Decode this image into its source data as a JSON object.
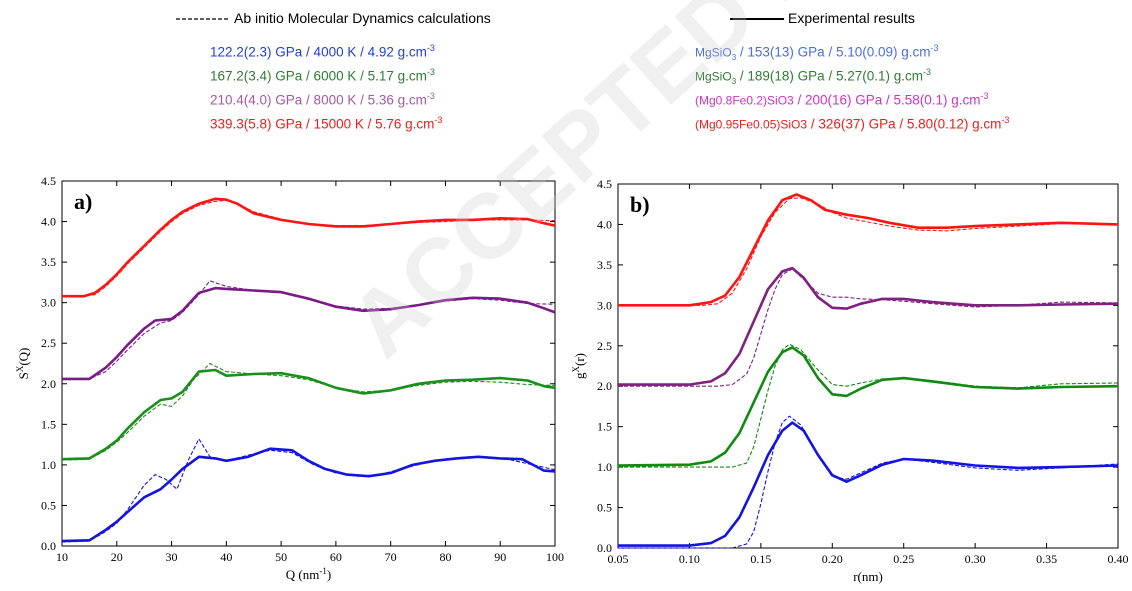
{
  "legend": {
    "sim_title": "Ab initio Molecular Dynamics calculations",
    "exp_title": "Experimental results",
    "sim_entries": [
      {
        "text": "122.2(2.3) GPa / 4000 K / 4.92 g.cm",
        "sup": "-3",
        "color": "#1f3fd8"
      },
      {
        "text": "167.2(3.4) GPa / 6000 K / 5.17 g.cm",
        "sup": "-3",
        "color": "#2e7d32"
      },
      {
        "text": "210.4(4.0) GPa / 8000 K / 5.36 g.cm",
        "sup": "-3",
        "color": "#a35aa3"
      },
      {
        "text": "339.3(5.8) GPa / 15000 K / 5.76 g.cm",
        "sup": "-3",
        "color": "#ef1c1c"
      }
    ],
    "exp_entries": [
      {
        "pre": "MgSiO",
        "pre_sub": "3",
        "text": " / 153(13) GPa / 5.10(0.09) g.cm",
        "sup": "-3",
        "color": "#4a6ee0"
      },
      {
        "pre": "MgSiO",
        "pre_sub": "3",
        "text": " / 189(18) GPa / 5.27(0.1) g.cm",
        "sup": "-3",
        "color": "#2e7d32"
      },
      {
        "pre": "(Mg0.8Fe0.2)SiO3",
        "text": " / 200(16) GPa / 5.58(0.1) g.cm",
        "sup": "-3",
        "color": "#d230c8"
      },
      {
        "pre": "(Mg0.95Fe0.05)SiO3",
        "text": " / 326(37) GPa / 5.80(0.12) g.cm",
        "sup": "-3",
        "color": "#ef1c1c"
      }
    ]
  },
  "watermark": "ACCEPTED PROOF",
  "chart_data": [
    {
      "type": "line",
      "panel_label": "a)",
      "xlabel": "Q (nm",
      "xlabel_sup": "-1",
      "xlabel_tail": ")",
      "ylabel": "S",
      "ylabel_sup": "X",
      "ylabel_tail": "(Q)",
      "xlim": [
        10,
        100
      ],
      "ylim": [
        0.0,
        4.5
      ],
      "xticks": [
        "10",
        "20",
        "30",
        "40",
        "50",
        "60",
        "70",
        "80",
        "90",
        "100"
      ],
      "yticks": [
        "0.0",
        "0.5",
        "1.0",
        "1.5",
        "2.0",
        "2.5",
        "3.0",
        "3.5",
        "4.0",
        "4.5"
      ],
      "series": [
        {
          "color": "#1414e0",
          "style": "solid",
          "x": [
            10,
            15,
            18,
            20,
            22,
            25,
            28,
            30,
            32,
            35,
            38,
            40,
            44,
            48,
            52,
            55,
            58,
            62,
            66,
            70,
            74,
            78,
            82,
            86,
            90,
            94,
            96,
            98,
            100
          ],
          "y": [
            0.06,
            0.07,
            0.2,
            0.3,
            0.42,
            0.6,
            0.7,
            0.82,
            0.95,
            1.1,
            1.08,
            1.05,
            1.1,
            1.2,
            1.18,
            1.05,
            0.95,
            0.88,
            0.86,
            0.9,
            1.0,
            1.05,
            1.08,
            1.1,
            1.08,
            1.07,
            1.0,
            0.93,
            0.92
          ]
        },
        {
          "color": "#1414e0",
          "style": "dashed",
          "x": [
            10,
            15,
            18,
            20,
            22,
            25,
            27,
            29,
            31,
            33,
            35,
            37,
            40,
            44,
            48,
            52,
            56,
            60,
            64,
            68,
            72,
            76,
            80,
            84,
            88,
            92,
            96,
            100
          ],
          "y": [
            0.05,
            0.06,
            0.18,
            0.28,
            0.45,
            0.75,
            0.88,
            0.82,
            0.7,
            1.05,
            1.32,
            1.1,
            1.05,
            1.12,
            1.18,
            1.15,
            1.0,
            0.9,
            0.86,
            0.88,
            0.95,
            1.02,
            1.07,
            1.1,
            1.09,
            1.06,
            1.0,
            0.94
          ]
        },
        {
          "color": "#1b8f1b",
          "style": "solid",
          "x": [
            10,
            15,
            18,
            20,
            22,
            25,
            28,
            30,
            32,
            35,
            38,
            40,
            45,
            50,
            55,
            60,
            65,
            70,
            75,
            80,
            85,
            90,
            95,
            98,
            100
          ],
          "y": [
            1.07,
            1.08,
            1.2,
            1.3,
            1.45,
            1.65,
            1.8,
            1.82,
            1.9,
            2.15,
            2.17,
            2.1,
            2.12,
            2.13,
            2.07,
            1.95,
            1.88,
            1.92,
            2.0,
            2.04,
            2.05,
            2.07,
            2.04,
            1.97,
            1.95
          ]
        },
        {
          "color": "#1b8f1b",
          "style": "dashed",
          "x": [
            10,
            15,
            18,
            20,
            22,
            25,
            28,
            30,
            32,
            34,
            37,
            40,
            45,
            50,
            55,
            60,
            65,
            70,
            75,
            80,
            85,
            90,
            95,
            100
          ],
          "y": [
            1.06,
            1.07,
            1.18,
            1.28,
            1.4,
            1.6,
            1.75,
            1.72,
            1.85,
            2.05,
            2.25,
            2.15,
            2.12,
            2.1,
            2.05,
            1.95,
            1.9,
            1.92,
            1.98,
            2.02,
            2.03,
            2.02,
            1.99,
            1.98
          ]
        },
        {
          "color": "#7b1b87",
          "style": "solid",
          "x": [
            10,
            15,
            18,
            20,
            22,
            25,
            27,
            30,
            32,
            35,
            38,
            40,
            45,
            50,
            55,
            60,
            65,
            70,
            75,
            80,
            85,
            90,
            95,
            98,
            100
          ],
          "y": [
            2.06,
            2.06,
            2.2,
            2.33,
            2.48,
            2.68,
            2.78,
            2.8,
            2.9,
            3.12,
            3.18,
            3.17,
            3.15,
            3.13,
            3.05,
            2.95,
            2.9,
            2.92,
            2.97,
            3.03,
            3.06,
            3.05,
            3.0,
            2.93,
            2.88
          ]
        },
        {
          "color": "#7b1b87",
          "style": "dashed",
          "x": [
            10,
            15,
            18,
            20,
            22,
            25,
            28,
            30,
            32,
            35,
            37,
            40,
            45,
            50,
            55,
            60,
            65,
            70,
            75,
            80,
            85,
            90,
            95,
            100
          ],
          "y": [
            2.05,
            2.06,
            2.15,
            2.28,
            2.42,
            2.62,
            2.75,
            2.78,
            2.88,
            3.1,
            3.27,
            3.2,
            3.15,
            3.12,
            3.04,
            2.96,
            2.92,
            2.93,
            2.97,
            3.02,
            3.05,
            3.03,
            2.99,
            2.98
          ]
        },
        {
          "color": "#ff1414",
          "style": "solid",
          "x": [
            10,
            14,
            16,
            18,
            20,
            22,
            25,
            28,
            30,
            32,
            35,
            38,
            40,
            42,
            45,
            50,
            55,
            60,
            65,
            70,
            75,
            80,
            85,
            90,
            95,
            98,
            100
          ],
          "y": [
            3.08,
            3.08,
            3.12,
            3.22,
            3.35,
            3.5,
            3.7,
            3.9,
            4.02,
            4.12,
            4.22,
            4.28,
            4.27,
            4.22,
            4.1,
            4.02,
            3.97,
            3.94,
            3.94,
            3.97,
            4.0,
            4.02,
            4.02,
            4.04,
            4.03,
            3.98,
            3.95
          ]
        },
        {
          "color": "#ff1414",
          "style": "dashed",
          "x": [
            10,
            14,
            16,
            18,
            20,
            22,
            25,
            28,
            30,
            32,
            35,
            38,
            40,
            42,
            45,
            50,
            55,
            60,
            65,
            70,
            75,
            80,
            85,
            90,
            95,
            100
          ],
          "y": [
            3.07,
            3.08,
            3.1,
            3.2,
            3.33,
            3.48,
            3.68,
            3.88,
            4.0,
            4.1,
            4.2,
            4.25,
            4.26,
            4.22,
            4.12,
            4.03,
            3.97,
            3.95,
            3.95,
            3.97,
            3.99,
            4.0,
            4.02,
            4.02,
            4.02,
            4.01
          ]
        }
      ]
    },
    {
      "type": "line",
      "panel_label": "b)",
      "xlabel": "r(nm)",
      "ylabel": "g",
      "ylabel_sup": "X",
      "ylabel_tail": "(r)",
      "xlim": [
        0.05,
        0.4
      ],
      "ylim": [
        0.0,
        4.5
      ],
      "xticks": [
        "0.05",
        "0.10",
        "0.15",
        "0.20",
        "0.25",
        "0.30",
        "0.35",
        "0.40"
      ],
      "yticks": [
        "0.0",
        "0.5",
        "1.0",
        "1.5",
        "2.0",
        "2.5",
        "3.0",
        "3.5",
        "4.0",
        "4.5"
      ],
      "series": [
        {
          "color": "#1414e0",
          "style": "solid",
          "x": [
            0.05,
            0.1,
            0.115,
            0.125,
            0.135,
            0.145,
            0.155,
            0.165,
            0.172,
            0.18,
            0.19,
            0.2,
            0.21,
            0.22,
            0.235,
            0.25,
            0.27,
            0.3,
            0.33,
            0.36,
            0.4
          ],
          "y": [
            0.03,
            0.03,
            0.06,
            0.15,
            0.38,
            0.75,
            1.15,
            1.45,
            1.55,
            1.45,
            1.15,
            0.9,
            0.82,
            0.9,
            1.03,
            1.1,
            1.08,
            1.02,
            0.99,
            1.0,
            1.02
          ]
        },
        {
          "color": "#1414e0",
          "style": "dashed",
          "x": [
            0.05,
            0.13,
            0.14,
            0.145,
            0.15,
            0.155,
            0.16,
            0.165,
            0.17,
            0.178,
            0.19,
            0.2,
            0.21,
            0.22,
            0.235,
            0.25,
            0.27,
            0.3,
            0.33,
            0.36,
            0.4
          ],
          "y": [
            0.0,
            0.0,
            0.05,
            0.2,
            0.55,
            0.95,
            1.3,
            1.55,
            1.63,
            1.52,
            1.15,
            0.88,
            0.85,
            0.93,
            1.05,
            1.1,
            1.06,
            0.99,
            0.96,
            0.99,
            1.04
          ]
        },
        {
          "color": "#108a10",
          "style": "solid",
          "x": [
            0.05,
            0.1,
            0.115,
            0.125,
            0.135,
            0.145,
            0.155,
            0.165,
            0.172,
            0.18,
            0.19,
            0.2,
            0.21,
            0.22,
            0.235,
            0.25,
            0.27,
            0.3,
            0.33,
            0.36,
            0.4
          ],
          "y": [
            1.02,
            1.03,
            1.07,
            1.18,
            1.42,
            1.8,
            2.18,
            2.42,
            2.48,
            2.38,
            2.1,
            1.9,
            1.88,
            1.97,
            2.08,
            2.1,
            2.06,
            1.99,
            1.97,
            1.99,
            2.0
          ]
        },
        {
          "color": "#108a10",
          "style": "dashed",
          "x": [
            0.05,
            0.13,
            0.14,
            0.145,
            0.15,
            0.155,
            0.16,
            0.165,
            0.17,
            0.178,
            0.19,
            0.2,
            0.21,
            0.22,
            0.235,
            0.25,
            0.27,
            0.3,
            0.33,
            0.36,
            0.4
          ],
          "y": [
            1.0,
            1.0,
            1.05,
            1.25,
            1.6,
            1.95,
            2.25,
            2.45,
            2.52,
            2.45,
            2.2,
            2.02,
            2.0,
            2.04,
            2.09,
            2.1,
            2.07,
            2.0,
            1.98,
            2.03,
            2.04
          ]
        },
        {
          "color": "#80207f",
          "style": "solid",
          "x": [
            0.05,
            0.1,
            0.115,
            0.125,
            0.135,
            0.145,
            0.155,
            0.165,
            0.172,
            0.18,
            0.19,
            0.2,
            0.21,
            0.22,
            0.235,
            0.25,
            0.27,
            0.3,
            0.33,
            0.36,
            0.4
          ],
          "y": [
            2.02,
            2.02,
            2.06,
            2.16,
            2.4,
            2.8,
            3.2,
            3.42,
            3.46,
            3.34,
            3.1,
            2.97,
            2.96,
            3.02,
            3.08,
            3.08,
            3.04,
            3.0,
            3.0,
            3.01,
            3.02
          ]
        },
        {
          "color": "#80207f",
          "style": "dashed",
          "x": [
            0.05,
            0.12,
            0.13,
            0.14,
            0.145,
            0.15,
            0.155,
            0.16,
            0.165,
            0.172,
            0.18,
            0.19,
            0.2,
            0.21,
            0.22,
            0.235,
            0.25,
            0.27,
            0.3,
            0.33,
            0.36,
            0.4
          ],
          "y": [
            2.0,
            2.0,
            2.02,
            2.15,
            2.35,
            2.65,
            2.95,
            3.2,
            3.38,
            3.45,
            3.32,
            3.15,
            3.1,
            3.1,
            3.08,
            3.07,
            3.05,
            3.02,
            2.98,
            3.0,
            3.04,
            3.03
          ]
        },
        {
          "color": "#ff1414",
          "style": "solid",
          "x": [
            0.05,
            0.1,
            0.115,
            0.125,
            0.135,
            0.145,
            0.155,
            0.165,
            0.175,
            0.185,
            0.195,
            0.21,
            0.225,
            0.24,
            0.26,
            0.28,
            0.3,
            0.33,
            0.36,
            0.4
          ],
          "y": [
            3.0,
            3.0,
            3.04,
            3.12,
            3.35,
            3.7,
            4.05,
            4.3,
            4.37,
            4.3,
            4.18,
            4.12,
            4.08,
            4.02,
            3.96,
            3.96,
            3.98,
            4.0,
            4.02,
            4.0
          ]
        },
        {
          "color": "#ff1414",
          "style": "dashed",
          "x": [
            0.05,
            0.11,
            0.12,
            0.13,
            0.14,
            0.15,
            0.16,
            0.17,
            0.178,
            0.19,
            0.2,
            0.21,
            0.225,
            0.24,
            0.26,
            0.28,
            0.3,
            0.33,
            0.36,
            0.4
          ],
          "y": [
            3.0,
            3.0,
            3.02,
            3.15,
            3.45,
            3.85,
            4.15,
            4.32,
            4.33,
            4.25,
            4.15,
            4.08,
            4.03,
            3.98,
            3.93,
            3.92,
            3.95,
            3.98,
            4.01,
            4.0
          ]
        }
      ]
    }
  ]
}
